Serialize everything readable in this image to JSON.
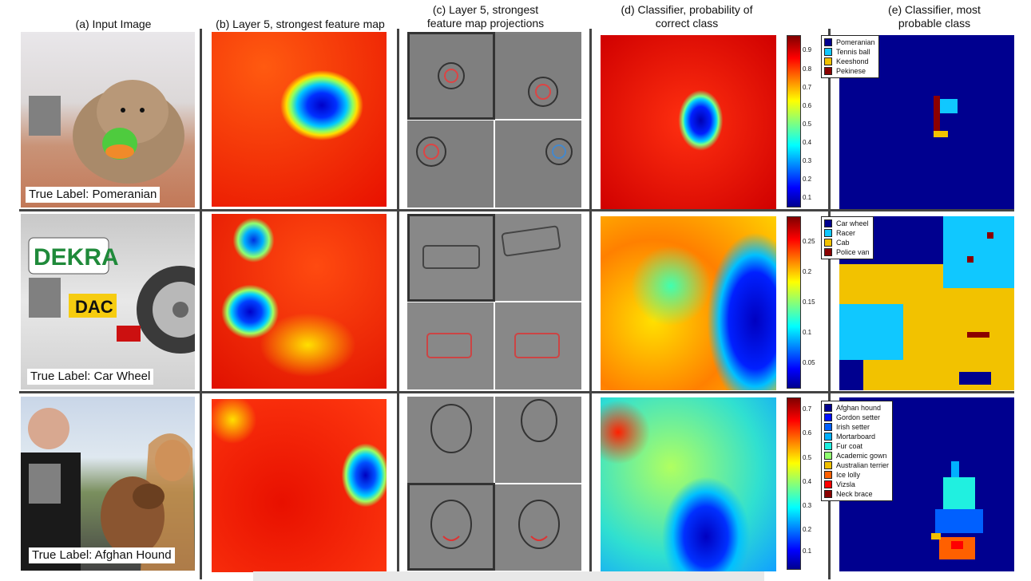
{
  "columns": [
    {
      "label": "(a) Input Image"
    },
    {
      "label": "(b) Layer 5, strongest feature map"
    },
    {
      "label": "(c) Layer 5, strongest feature map projections"
    },
    {
      "label": "(d) Classifier, probability of correct class"
    },
    {
      "label": "(e) Classifier, most probable class"
    }
  ],
  "rows": [
    {
      "true_label": "True Label: Pomeranian",
      "colorbar_ticks": [
        "0.9",
        "0.8",
        "0.7",
        "0.6",
        "0.5",
        "0.4",
        "0.3",
        "0.2",
        "0.1"
      ],
      "legend": [
        {
          "name": "Pomeranian",
          "color": "#00008f"
        },
        {
          "name": "Tennis ball",
          "color": "#10c8ff"
        },
        {
          "name": "Keeshond",
          "color": "#f2c200"
        },
        {
          "name": "Pekinese",
          "color": "#8b0000"
        }
      ]
    },
    {
      "true_label": "True Label: Car Wheel",
      "colorbar_ticks": [
        "0.25",
        "0.2",
        "0.15",
        "0.1",
        "0.05"
      ],
      "legend": [
        {
          "name": "Car wheel",
          "color": "#00008f"
        },
        {
          "name": "Racer",
          "color": "#10c8ff"
        },
        {
          "name": "Cab",
          "color": "#f2c200"
        },
        {
          "name": "Police van",
          "color": "#8b0000"
        }
      ]
    },
    {
      "true_label": "True Label: Afghan Hound",
      "colorbar_ticks": [
        "0.7",
        "0.6",
        "0.5",
        "0.4",
        "0.3",
        "0.2",
        "0.1"
      ],
      "legend": [
        {
          "name": "Afghan hound",
          "color": "#00008f"
        },
        {
          "name": "Gordon setter",
          "color": "#0010ff"
        },
        {
          "name": "Irish setter",
          "color": "#0060ff"
        },
        {
          "name": "Mortarboard",
          "color": "#00b0ff"
        },
        {
          "name": "Fur coat",
          "color": "#20f0e0"
        },
        {
          "name": "Academic gown",
          "color": "#90ff70"
        },
        {
          "name": "Australian terrier",
          "color": "#f0c000"
        },
        {
          "name": "Ice lolly",
          "color": "#ff6000"
        },
        {
          "name": "Vizsla",
          "color": "#ff0000"
        },
        {
          "name": "Neck brace",
          "color": "#8b0000"
        }
      ]
    }
  ]
}
